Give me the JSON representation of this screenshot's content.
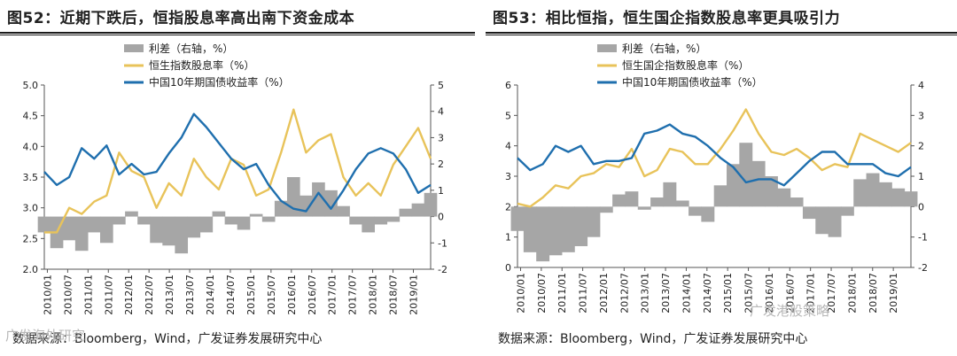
{
  "chart_data": [
    {
      "type": "line",
      "title": "图52：近期下跌后，恒指股息率高出南下资金成本",
      "left_axis": {
        "min": 2.0,
        "max": 5.0,
        "ticks": [
          "5.0",
          "4.5",
          "4.0",
          "3.5",
          "3.0",
          "2.5",
          "2.0"
        ]
      },
      "right_axis": {
        "min": -2,
        "max": 5,
        "ticks": [
          "5",
          "4",
          "3",
          "2",
          "1",
          "0",
          "-1",
          "-2"
        ]
      },
      "x_labels": [
        "2010/01",
        "2010/07",
        "2011/01",
        "2011/07",
        "2012/01",
        "2012/07",
        "2013/01",
        "2013/07",
        "2014/01",
        "2014/07",
        "2015/01",
        "2015/07",
        "2016/01",
        "2016/07",
        "2017/01",
        "2017/07",
        "2018/01",
        "2018/07",
        "2019/01"
      ],
      "legend": [
        "利差（右轴，%）",
        "恒生指数股息率（%）",
        "中国10年期国债收益率（%）"
      ],
      "series": [
        {
          "name": "利差（右轴，%）",
          "axis": "right",
          "kind": "area",
          "values": [
            -0.6,
            -1.2,
            -0.9,
            -1.3,
            -0.6,
            -1.0,
            -0.3,
            0.2,
            -0.3,
            -1.0,
            -1.1,
            -1.4,
            -0.8,
            -0.6,
            0.2,
            -0.3,
            -0.5,
            0.1,
            -0.2,
            0.6,
            1.5,
            0.8,
            1.3,
            1.0,
            0.4,
            -0.3,
            -0.6,
            -0.3,
            -0.2,
            0.3,
            0.5,
            0.9
          ]
        },
        {
          "name": "恒生指数股息率（%）",
          "axis": "left",
          "values": [
            2.6,
            2.6,
            3.0,
            2.9,
            3.1,
            3.2,
            3.9,
            3.6,
            3.5,
            3.0,
            3.4,
            3.2,
            3.8,
            3.5,
            3.3,
            3.8,
            3.7,
            3.2,
            3.3,
            3.9,
            4.6,
            3.9,
            4.1,
            4.2,
            3.5,
            3.2,
            3.4,
            3.2,
            3.7,
            4.0,
            4.3,
            3.8
          ]
        },
        {
          "name": "中国10年期国债收益率（%）",
          "axis": "right",
          "values": [
            1.7,
            1.2,
            1.5,
            2.6,
            2.2,
            2.7,
            1.6,
            2.0,
            1.6,
            1.7,
            2.4,
            3.0,
            3.9,
            3.4,
            2.8,
            2.2,
            1.8,
            2.0,
            1.2,
            0.6,
            0.3,
            0.2,
            0.9,
            0.3,
            1.0,
            1.8,
            2.4,
            2.6,
            2.4,
            1.8,
            0.9,
            1.2
          ]
        }
      ],
      "source": "数据来源：Bloomberg，Wind，广发证券发展研究中心",
      "watermark": "广发海外研究"
    },
    {
      "type": "line",
      "title": "图53：相比恒指，恒生国企指数股息率更具吸引力",
      "left_axis": {
        "min": 0,
        "max": 6,
        "ticks": [
          "6",
          "5",
          "4",
          "3",
          "2",
          "1",
          "0"
        ]
      },
      "right_axis": {
        "min": -2,
        "max": 4,
        "ticks": [
          "4",
          "3",
          "2",
          "1",
          "0",
          "-1",
          "-2"
        ]
      },
      "x_labels": [
        "2010/01",
        "2010/07",
        "2011/01",
        "2011/07",
        "2012/01",
        "2012/07",
        "2013/01",
        "2013/07",
        "2014/01",
        "2014/07",
        "2015/01",
        "2015/07",
        "2016/01",
        "2016/07",
        "2017/01",
        "2017/07",
        "2018/01",
        "2018/07",
        "2019/01"
      ],
      "legend": [
        "利差（右轴，%）",
        "恒生国企指数股息率（%）",
        "中国10年期国债收益率（%）"
      ],
      "series": [
        {
          "name": "利差（右轴，%）",
          "axis": "right",
          "kind": "area",
          "values": [
            -0.8,
            -1.5,
            -1.8,
            -1.6,
            -1.5,
            -1.3,
            -1.0,
            -0.2,
            0.4,
            0.5,
            -0.1,
            0.3,
            0.8,
            0.2,
            -0.3,
            -0.5,
            0.7,
            1.4,
            2.1,
            1.5,
            1.0,
            0.6,
            0.3,
            -0.4,
            -0.9,
            -1.0,
            -0.3,
            0.9,
            1.1,
            0.8,
            0.6,
            0.5
          ]
        },
        {
          "name": "恒生国企指数股息率（%）",
          "axis": "left",
          "values": [
            2.1,
            2.0,
            2.3,
            2.7,
            2.6,
            3.0,
            3.1,
            3.4,
            3.3,
            3.9,
            3.0,
            3.2,
            3.9,
            3.8,
            3.4,
            3.4,
            3.9,
            4.5,
            5.2,
            4.4,
            3.8,
            3.7,
            3.9,
            3.6,
            3.2,
            3.4,
            3.3,
            4.4,
            4.2,
            4.0,
            3.8,
            4.1
          ]
        },
        {
          "name": "中国10年期国债收益率（%）",
          "axis": "right",
          "values": [
            1.6,
            1.2,
            1.4,
            2.0,
            1.8,
            2.0,
            1.4,
            1.5,
            1.5,
            1.6,
            2.4,
            2.5,
            2.7,
            2.4,
            2.3,
            2.0,
            1.6,
            1.3,
            0.8,
            0.9,
            0.9,
            0.7,
            1.1,
            1.5,
            1.8,
            1.8,
            1.4,
            1.4,
            1.4,
            1.1,
            1.0,
            1.3
          ]
        }
      ],
      "source": "数据来源：Bloomberg，Wind，广发证券发展研究中心",
      "watermark": "广发港股策略"
    }
  ],
  "colors": {
    "spread": "#a6a6a6",
    "dividend": "#e8c35a",
    "bond": "#1f6fae"
  }
}
